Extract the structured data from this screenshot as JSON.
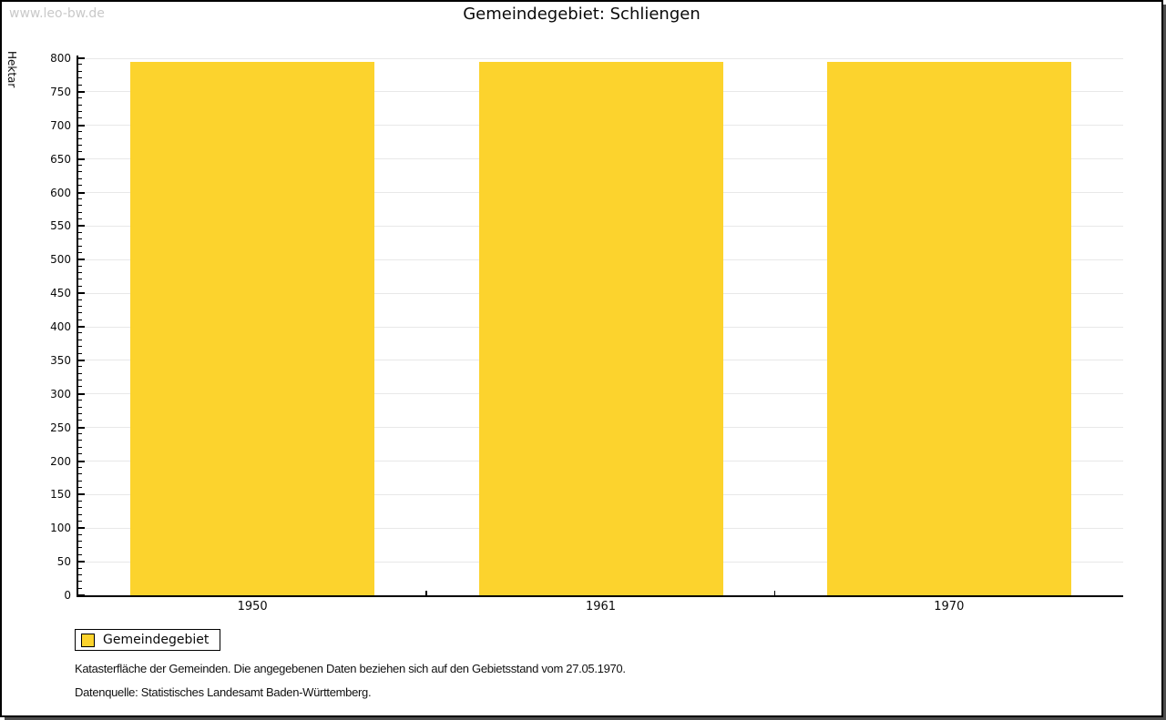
{
  "watermark": "www.leo-bw.de",
  "title": "Gemeindegebiet: Schliengen",
  "chart_data": {
    "type": "bar",
    "title": "Gemeindegebiet: Schliengen",
    "categories": [
      "1950",
      "1961",
      "1970"
    ],
    "series": [
      {
        "name": "Gemeindegebiet",
        "color": "#FCD32D",
        "values": [
          795,
          795,
          795
        ]
      }
    ],
    "xlabel": "",
    "ylabel": "Hektar",
    "ylim": [
      0,
      800
    ],
    "ytick_major_step": 50,
    "ytick_minor_step": 10,
    "grid": "horizontal-major",
    "legend_position": "bottom-left"
  },
  "legend": {
    "items": [
      {
        "label": "Gemeindegebiet",
        "color": "#FCD32D"
      }
    ]
  },
  "footnotes": [
    "Katasterfläche der Gemeinden. Die angegebenen Daten beziehen sich auf den Gebietsstand vom 27.05.1970.",
    "Datenquelle: Statistisches Landesamt Baden-Württemberg."
  ],
  "colors": {
    "bar": "#FCD32D",
    "grid": "#E8E8E8",
    "axis": "#000000",
    "watermark": "#C9C9C9",
    "frame_shadow": "#4D4D4D"
  }
}
